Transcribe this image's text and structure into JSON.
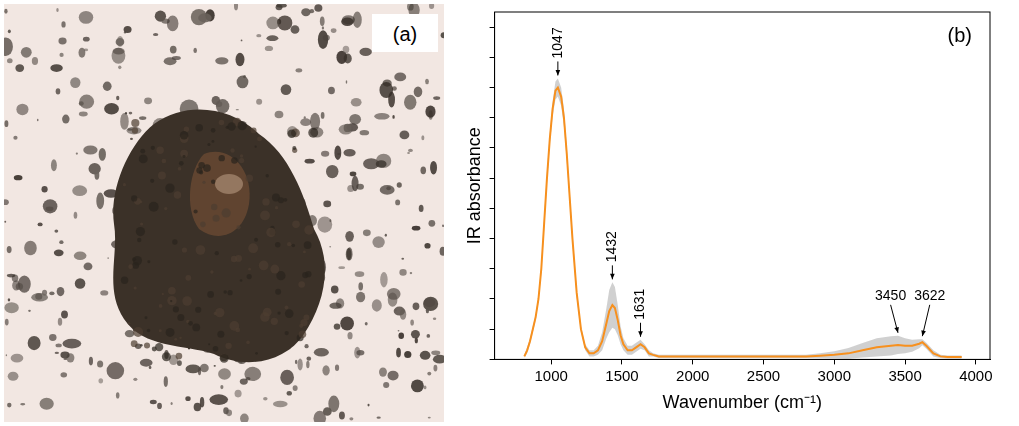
{
  "photo": {
    "label": "(a)"
  },
  "chart_data": {
    "type": "line",
    "label": "(b)",
    "x_label": "Wavenumber (cm⁻¹)",
    "y_label": "IR absorbance",
    "x": [
      810,
      830,
      850,
      870,
      890,
      910,
      930,
      950,
      970,
      990,
      1010,
      1030,
      1047,
      1070,
      1090,
      1110,
      1130,
      1150,
      1180,
      1210,
      1240,
      1270,
      1300,
      1330,
      1360,
      1390,
      1410,
      1432,
      1450,
      1470,
      1490,
      1510,
      1540,
      1570,
      1600,
      1631,
      1660,
      1690,
      1720,
      1760,
      1800,
      1900,
      2000,
      2200,
      2400,
      2600,
      2800,
      2900,
      3000,
      3100,
      3200,
      3300,
      3400,
      3450,
      3500,
      3550,
      3600,
      3622,
      3650,
      3700,
      3750,
      3800,
      3850,
      3900
    ],
    "values": [
      0.01,
      0.03,
      0.06,
      0.1,
      0.14,
      0.2,
      0.3,
      0.45,
      0.6,
      0.73,
      0.83,
      0.89,
      0.9,
      0.87,
      0.8,
      0.68,
      0.54,
      0.4,
      0.22,
      0.1,
      0.04,
      0.02,
      0.02,
      0.03,
      0.06,
      0.12,
      0.16,
      0.18,
      0.17,
      0.13,
      0.08,
      0.05,
      0.03,
      0.03,
      0.04,
      0.05,
      0.04,
      0.02,
      0.015,
      0.01,
      0.01,
      0.01,
      0.01,
      0.01,
      0.01,
      0.01,
      0.01,
      0.012,
      0.015,
      0.02,
      0.03,
      0.04,
      0.045,
      0.048,
      0.045,
      0.045,
      0.052,
      0.057,
      0.045,
      0.02,
      0.01,
      0.008,
      0.008,
      0.008
    ],
    "spread": [
      0.005,
      0.01,
      0.01,
      0.01,
      0.01,
      0.01,
      0.015,
      0.02,
      0.02,
      0.02,
      0.025,
      0.03,
      0.03,
      0.03,
      0.03,
      0.025,
      0.02,
      0.02,
      0.015,
      0.01,
      0.01,
      0.01,
      0.01,
      0.015,
      0.03,
      0.05,
      0.07,
      0.075,
      0.07,
      0.05,
      0.03,
      0.02,
      0.015,
      0.015,
      0.015,
      0.015,
      0.01,
      0.01,
      0.005,
      0.005,
      0.005,
      0.005,
      0.005,
      0.005,
      0.005,
      0.005,
      0.005,
      0.008,
      0.012,
      0.018,
      0.024,
      0.03,
      0.032,
      0.03,
      0.025,
      0.02,
      0.015,
      0.01,
      0.01,
      0.01,
      0.005,
      0.005,
      0.005,
      0.005
    ],
    "peaks": [
      1047,
      1432,
      1631,
      3450,
      3622
    ],
    "color": "#f7901e",
    "xlim": [
      600,
      4100
    ],
    "xticks": [
      1000,
      1500,
      2000,
      2500,
      3000,
      3500,
      4000
    ],
    "ylim": [
      0,
      1.15
    ],
    "yticks": [
      0,
      0.1,
      0.2,
      0.3,
      0.4,
      0.5,
      0.6,
      0.7,
      0.8,
      0.9,
      1.0,
      1.1
    ],
    "tick_labels": "x",
    "grid": false
  }
}
